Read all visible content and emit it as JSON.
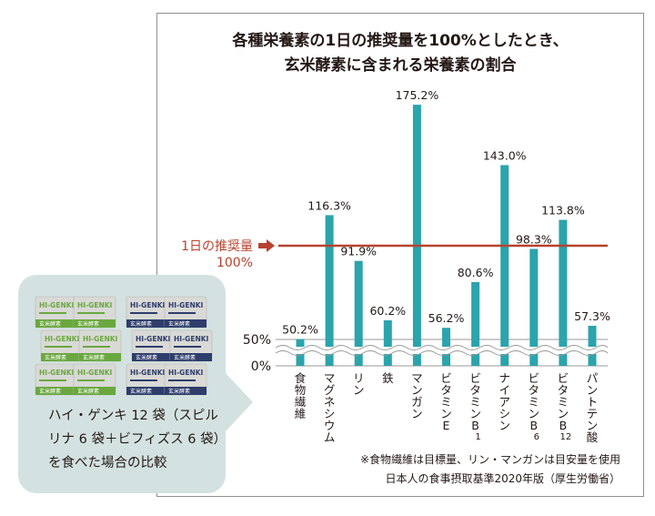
{
  "chart_data": {
    "type": "bar",
    "title_lines": [
      "各種栄養素の1日の推奨量を100%としたとき、",
      "玄米酵素に含まれる栄養素の割合"
    ],
    "categories": [
      {
        "lines": [
          "食物繊維"
        ],
        "sub": ""
      },
      {
        "lines": [
          "マグネシウム"
        ],
        "sub": ""
      },
      {
        "lines": [
          "リン"
        ],
        "sub": ""
      },
      {
        "lines": [
          "鉄"
        ],
        "sub": ""
      },
      {
        "lines": [
          "マンガン"
        ],
        "sub": ""
      },
      {
        "lines": [
          "ビタミンE"
        ],
        "sub": ""
      },
      {
        "lines": [
          "ビタミンB"
        ],
        "sub": "1"
      },
      {
        "lines": [
          "ナイアシン"
        ],
        "sub": ""
      },
      {
        "lines": [
          "ビタミンB"
        ],
        "sub": "6"
      },
      {
        "lines": [
          "ビタミンB"
        ],
        "sub": "12"
      },
      {
        "lines": [
          "パントテン酸"
        ],
        "sub": ""
      }
    ],
    "values": [
      50.2,
      116.3,
      91.9,
      60.2,
      175.2,
      56.2,
      80.6,
      143.0,
      98.3,
      113.8,
      57.3
    ],
    "value_labels": [
      "50.2%",
      "116.3%",
      "91.9%",
      "60.2%",
      "175.2%",
      "56.2%",
      "80.6%",
      "143.0%",
      "98.3%",
      "113.8%",
      "57.3%"
    ],
    "y_ticks": [
      {
        "value": 0,
        "label": "0%"
      },
      {
        "value": 50,
        "label": "50%"
      }
    ],
    "axis_break": "50%",
    "reference_line": {
      "value": 100,
      "label_line1": "1日の推奨量",
      "label_line2": "100%"
    },
    "colors": {
      "bar": "#2ba4ac",
      "reference": "#b5432f",
      "axis": "#999999"
    }
  },
  "card": {
    "caption_lines": [
      "ハイ・ゲンキ 12 袋（スピル",
      "リナ 6 袋＋ビフィズス 6 袋）",
      "を食べた場合の比較"
    ],
    "packet_brand": "HI-GENKI",
    "packet_variant_green": "玄米酵素",
    "packet_variant_navy": "玄米酵素",
    "colors": {
      "background": "#d3e2e0",
      "green": "#6aa83f",
      "navy": "#2e3d6b"
    }
  },
  "notes": [
    "※食物繊維は目標量、リン・マンガンは目安量を使用",
    "日本人の食事摂取基準2020年版（厚生労働省）"
  ]
}
